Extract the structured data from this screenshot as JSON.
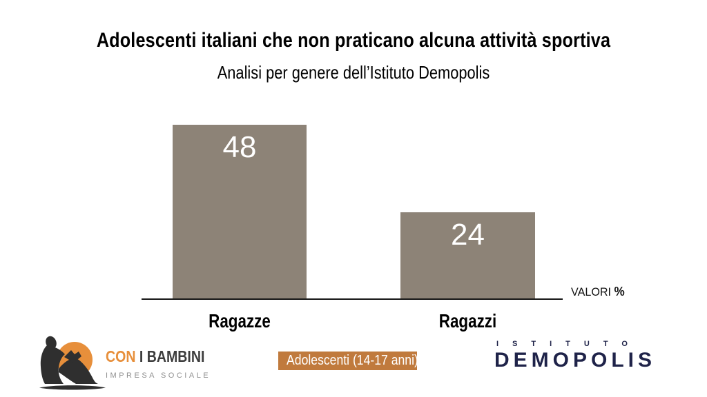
{
  "title": "Adolescenti italiani che non praticano alcuna attività sportiva",
  "subtitle": "Analisi per genere dell’Istituto Demopolis",
  "chart_data": {
    "type": "bar",
    "categories": [
      "Ragazze",
      "Ragazzi"
    ],
    "values": [
      48,
      24
    ],
    "title": "Adolescenti italiani che non praticano alcuna attività sportiva",
    "subtitle": "Analisi per genere dell’Istituto Demopolis",
    "unit_label": "VALORI",
    "unit_symbol": "%",
    "ylim": [
      0,
      50
    ],
    "grid": false,
    "legend": "none",
    "bar_color": "#8d8377",
    "value_label_color": "#ffffff",
    "value_labels_inside_bars": true
  },
  "footer": {
    "con_i_bambini": {
      "name_accent": "CON",
      "name_rest": "I BAMBINI",
      "tagline": "IMPRESA SOCIALE",
      "accent_color": "#e78f3b",
      "text_color": "#3d3d3d",
      "tagline_color": "#8f8f8f",
      "silhouette_color": "#2f2f2f"
    },
    "badge": {
      "label": "Adolescenti (14-17 anni)",
      "background": "#c07a3d",
      "color": "#ffffff"
    },
    "demopolis": {
      "istituto": "ISTITUTO",
      "name_pre": "DEM",
      "name_o": "O",
      "name_post": "POLIS",
      "color": "#1f2349",
      "emblem_color": "#d7892c"
    }
  }
}
